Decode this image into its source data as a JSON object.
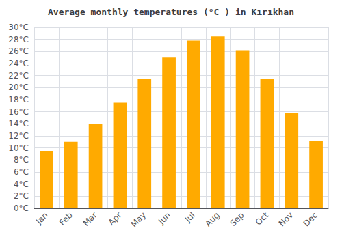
{
  "chart_data": {
    "type": "bar",
    "title": "Average monthly temperatures (°C ) in Kırıkhan",
    "categories": [
      "Jan",
      "Feb",
      "Mar",
      "Apr",
      "May",
      "Jun",
      "Jul",
      "Aug",
      "Sep",
      "Oct",
      "Nov",
      "Dec"
    ],
    "values": [
      9.5,
      11.0,
      14.0,
      17.5,
      21.5,
      25.0,
      27.8,
      28.5,
      26.2,
      21.5,
      15.8,
      11.2
    ],
    "color": "#FFAA00",
    "ylim": [
      0,
      30
    ],
    "yticks": [
      {
        "value": 0,
        "label": "0°C"
      },
      {
        "value": 2,
        "label": "2°C"
      },
      {
        "value": 4,
        "label": "4°C"
      },
      {
        "value": 6,
        "label": "6°C"
      },
      {
        "value": 8,
        "label": "8°C"
      },
      {
        "value": 10,
        "label": "10°C"
      },
      {
        "value": 12,
        "label": "12°C"
      },
      {
        "value": 14,
        "label": "14°C"
      },
      {
        "value": 16,
        "label": "16°C"
      },
      {
        "value": 18,
        "label": "18°C"
      },
      {
        "value": 20,
        "label": "20°C"
      },
      {
        "value": 22,
        "label": "22°C"
      },
      {
        "value": 24,
        "label": "24°C"
      },
      {
        "value": 26,
        "label": "26°C"
      },
      {
        "value": 28,
        "label": "28°C"
      },
      {
        "value": 30,
        "label": "30°C"
      }
    ],
    "grid": true
  }
}
